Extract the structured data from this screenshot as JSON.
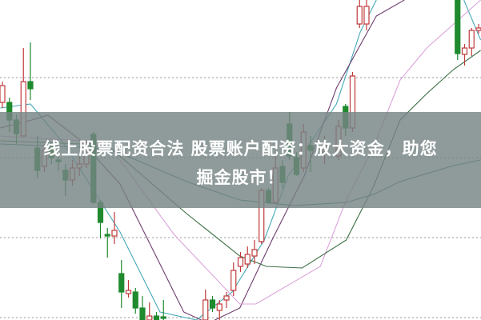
{
  "title": {
    "line1": "线上股票配资合法 股票账户配资：放大资金，助您",
    "line2": "掘金股市！"
  },
  "colors": {
    "up": "#c0393b",
    "down": "#1f8a2e",
    "banner": "#768484",
    "grid": "#9a9a9a"
  },
  "chart_data": {
    "type": "candlestick",
    "title": "",
    "xlabel": "",
    "ylabel": "",
    "ylim": [
      0,
      100
    ],
    "xlim": [
      -0.3,
      68.3
    ],
    "grid": "horizontal dotted",
    "gridlines": [
      75.75,
      50.75,
      25.75,
      0.75
    ],
    "candles_fields": [
      "day",
      "open",
      "close",
      "high",
      "low"
    ],
    "candles": [
      [
        0,
        68,
        73.25,
        74.5,
        66.25
      ],
      [
        1,
        68,
        62.5,
        69.5,
        58.75
      ],
      [
        2,
        62.5,
        58.25,
        64.25,
        55
      ],
      [
        3,
        57.5,
        74.5,
        85,
        57.5
      ],
      [
        4,
        74.5,
        72.25,
        86.75,
        68.75
      ],
      [
        5,
        53.75,
        46.75,
        57.5,
        44.25
      ],
      [
        6,
        48,
        53,
        55,
        46.25
      ],
      [
        7,
        54.25,
        50.75,
        55,
        48.75
      ],
      [
        8,
        50,
        49.5,
        51.25,
        46.75
      ],
      [
        9,
        46.75,
        43.75,
        48.75,
        38.75
      ],
      [
        10,
        43.75,
        47.5,
        50,
        42
      ],
      [
        11,
        47.5,
        48.75,
        51.25,
        45
      ],
      [
        12,
        48.75,
        53.25,
        56.25,
        47.5
      ],
      [
        13,
        58,
        36.75,
        58.75,
        36.25
      ],
      [
        14,
        36.75,
        30.5,
        37.5,
        25.5
      ],
      [
        15,
        26.75,
        26.25,
        28.75,
        19.5
      ],
      [
        16,
        26.25,
        28,
        33.75,
        23.75
      ],
      [
        17,
        14.5,
        8.75,
        18.75,
        3.75
      ],
      [
        18,
        8.25,
        9.25,
        12.5,
        7
      ],
      [
        19,
        8.75,
        3.75,
        10,
        2
      ],
      [
        20,
        3.75,
        0,
        7.5,
        0
      ],
      [
        21,
        0,
        1.25,
        5.5,
        0
      ],
      [
        22,
        1.25,
        0,
        2.5,
        0
      ],
      [
        23,
        1,
        0.5,
        6.25,
        0
      ],
      [
        29,
        0,
        6.25,
        9.5,
        0
      ],
      [
        30,
        6.25,
        3.75,
        7.5,
        2.5
      ],
      [
        31,
        3,
        5,
        6.25,
        0
      ],
      [
        32,
        6.25,
        7.5,
        8.75,
        3.75
      ],
      [
        33,
        9.25,
        15.5,
        18,
        7.5
      ],
      [
        34,
        16.75,
        19.5,
        21.25,
        15
      ],
      [
        35,
        17.5,
        20.5,
        23,
        16.25
      ],
      [
        36,
        20,
        22,
        25,
        17.5
      ],
      [
        37,
        24.5,
        40.5,
        41.25,
        23.75
      ],
      [
        38,
        40.5,
        36.75,
        41.25,
        36.25
      ],
      [
        39,
        36.75,
        47.5,
        51.75,
        36.25
      ],
      [
        40,
        48,
        43,
        50,
        41.25
      ],
      [
        41,
        61.25,
        51.25,
        65,
        50
      ],
      [
        42,
        50.75,
        45.5,
        52.5,
        45
      ],
      [
        43,
        47.5,
        58.75,
        61.25,
        46.25
      ],
      [
        44,
        54.5,
        53,
        57.5,
        46.25
      ],
      [
        46,
        52.5,
        55,
        57.5,
        48.75
      ],
      [
        48,
        51.25,
        60.5,
        62.5,
        50
      ],
      [
        49,
        66.75,
        60,
        67.5,
        57.5
      ],
      [
        50,
        60,
        76.25,
        77.5,
        58.75
      ],
      [
        51,
        92.5,
        98,
        100,
        91.25
      ],
      [
        52,
        92.5,
        98,
        100,
        90.5
      ],
      [
        65,
        100,
        83.25,
        100,
        81.25
      ],
      [
        66,
        83,
        85,
        86.25,
        79.5
      ],
      [
        67,
        85,
        90.5,
        91.25,
        82.5
      ],
      [
        68,
        90.5,
        91.25,
        92.5,
        89.5
      ]
    ],
    "moving_averages": [
      {
        "color": "#45a9b8",
        "segments": [
          [
            [
              -0.3,
              66.25
            ],
            [
              4,
              67.5
            ],
            [
              8.8,
              55
            ],
            [
              16.8,
              27.5
            ],
            [
              22.5,
              2.5
            ],
            [
              27.7,
              0
            ],
            [
              32.8,
              8.75
            ],
            [
              37.4,
              25
            ],
            [
              40.8,
              45
            ],
            [
              47.7,
              67.5
            ],
            [
              51.1,
              90
            ],
            [
              53.4,
              100
            ]
          ],
          [
            [
              65.9,
              100
            ],
            [
              68.3,
              87.5
            ]
          ]
        ]
      },
      {
        "color": "#6e3d6e",
        "segments": [
          [
            [
              -0.3,
              60
            ],
            [
              4.2,
              62.5
            ],
            [
              6.5,
              64
            ],
            [
              11.1,
              56.25
            ],
            [
              16.8,
              42.5
            ],
            [
              22.5,
              17.5
            ],
            [
              25.9,
              2.5
            ],
            [
              29.4,
              -1
            ],
            [
              33.9,
              3.75
            ],
            [
              38.5,
              25
            ],
            [
              43.1,
              45
            ],
            [
              47.7,
              72.5
            ],
            [
              53.4,
              95
            ],
            [
              57.4,
              100
            ]
          ]
        ]
      },
      {
        "color": "#dba3db",
        "segments": [
          [
            [
              -0.3,
              57.5
            ],
            [
              11.1,
              56
            ],
            [
              15.7,
              53.25
            ],
            [
              24.5,
              26.75
            ],
            [
              33.9,
              5
            ],
            [
              36.2,
              5
            ],
            [
              45.4,
              16.75
            ],
            [
              49.1,
              37.5
            ],
            [
              53,
              54
            ],
            [
              56.8,
              75
            ],
            [
              60.6,
              85
            ],
            [
              68.3,
              100
            ]
          ]
        ]
      },
      {
        "color": "#3a6e44",
        "segments": [
          [
            [
              -0.3,
              56
            ],
            [
              11.1,
              55
            ],
            [
              15.7,
              53.25
            ],
            [
              26.3,
              33.25
            ],
            [
              33.9,
              20
            ],
            [
              37.7,
              16.75
            ],
            [
              42.8,
              16.25
            ],
            [
              49.1,
              25
            ],
            [
              53,
              41.75
            ],
            [
              56.8,
              62.5
            ],
            [
              60.6,
              70.75
            ],
            [
              64.4,
              78.25
            ],
            [
              68.3,
              84.25
            ]
          ]
        ]
      },
      {
        "color": "#3b7e86",
        "segments": [
          [
            [
              -0.3,
              55
            ],
            [
              11.1,
              54
            ],
            [
              15.7,
              53.25
            ],
            [
              26.3,
              43.25
            ],
            [
              33.9,
              37.5
            ],
            [
              41.6,
              35.75
            ],
            [
              49.1,
              36.75
            ],
            [
              53,
              39.25
            ],
            [
              56.8,
              43.25
            ],
            [
              64.4,
              48.25
            ],
            [
              68.3,
              50
            ]
          ]
        ]
      }
    ]
  }
}
